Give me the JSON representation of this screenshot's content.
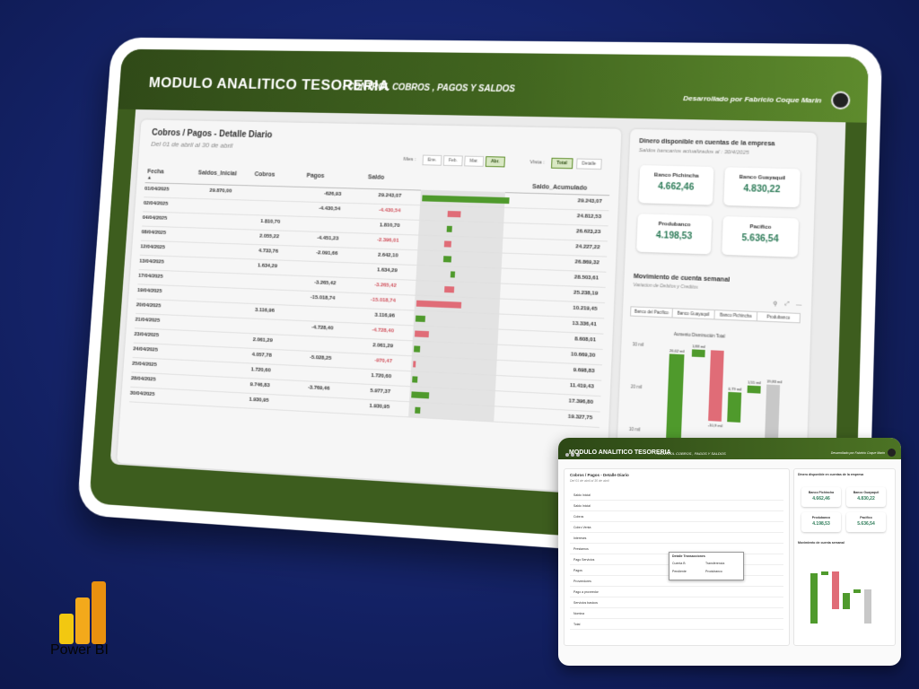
{
  "header": {
    "title": "MODULO ANALITICO TESORERIA",
    "subtitle": "- CONTROL COBROS , PAGOS Y SALDOS",
    "developer": "Desarrollado por Fabricio Coque Marin"
  },
  "detail": {
    "title": "Cobros / Pagos - Detalle Diario",
    "subtitle": "Del 01 de abril al 30 de abril",
    "mes_label": "Mes :",
    "months": [
      "Ene.",
      "Feb.",
      "Mar.",
      "Abr."
    ],
    "selected_month": "Abr.",
    "vista_label": "Vista :",
    "views": [
      "Total",
      "Detalle"
    ],
    "selected_view": "Total",
    "columns": [
      "Fecha",
      "Saldos_Inicial",
      "Cobros",
      "Pagos",
      "Saldo",
      "Saldo_Acumulado"
    ],
    "rows": [
      {
        "fecha": "01/04/2025",
        "inicial": "29.870,00",
        "cobros": "",
        "pagos": "-626,93",
        "saldo": "29.243,07",
        "acum": "29.243,07"
      },
      {
        "fecha": "02/04/2025",
        "inicial": "",
        "cobros": "",
        "pagos": "-4.430,54",
        "saldo": "-4.430,54",
        "acum": "24.812,53"
      },
      {
        "fecha": "04/04/2025",
        "inicial": "",
        "cobros": "1.810,70",
        "pagos": "",
        "saldo": "1.810,70",
        "acum": "26.623,23"
      },
      {
        "fecha": "08/04/2025",
        "inicial": "",
        "cobros": "2.055,22",
        "pagos": "-4.451,23",
        "saldo": "-2.396,01",
        "acum": "24.227,22"
      },
      {
        "fecha": "12/04/2025",
        "inicial": "",
        "cobros": "4.733,76",
        "pagos": "-2.091,66",
        "saldo": "2.642,10",
        "acum": "26.869,32"
      },
      {
        "fecha": "13/04/2025",
        "inicial": "",
        "cobros": "1.634,29",
        "pagos": "",
        "saldo": "1.634,29",
        "acum": "28.503,61"
      },
      {
        "fecha": "17/04/2025",
        "inicial": "",
        "cobros": "",
        "pagos": "-3.265,42",
        "saldo": "-3.265,42",
        "acum": "25.238,19"
      },
      {
        "fecha": "19/04/2025",
        "inicial": "",
        "cobros": "",
        "pagos": "-15.018,74",
        "saldo": "-15.018,74",
        "acum": "10.219,45"
      },
      {
        "fecha": "20/04/2025",
        "inicial": "",
        "cobros": "3.116,96",
        "pagos": "",
        "saldo": "3.116,96",
        "acum": "13.336,41"
      },
      {
        "fecha": "21/04/2025",
        "inicial": "",
        "cobros": "",
        "pagos": "-4.728,40",
        "saldo": "-4.728,40",
        "acum": "8.608,01"
      },
      {
        "fecha": "23/04/2025",
        "inicial": "",
        "cobros": "2.061,29",
        "pagos": "",
        "saldo": "2.061,29",
        "acum": "10.669,30"
      },
      {
        "fecha": "24/04/2025",
        "inicial": "",
        "cobros": "4.057,78",
        "pagos": "-5.028,25",
        "saldo": "-970,47",
        "acum": "9.698,83"
      },
      {
        "fecha": "25/04/2025",
        "inicial": "",
        "cobros": "1.720,60",
        "pagos": "",
        "saldo": "1.720,60",
        "acum": "11.419,43"
      },
      {
        "fecha": "28/04/2025",
        "inicial": "",
        "cobros": "9.746,83",
        "pagos": "-3.769,46",
        "saldo": "5.977,37",
        "acum": "17.396,80"
      },
      {
        "fecha": "30/04/2025",
        "inicial": "",
        "cobros": "1.930,95",
        "pagos": "",
        "saldo": "1.930,95",
        "acum": "19.327,75"
      }
    ]
  },
  "chart_data": {
    "type": "bar",
    "categories": [
      "01/04/2025",
      "02/04/2025",
      "04/04/2025",
      "08/04/2025",
      "12/04/2025",
      "13/04/2025",
      "17/04/2025",
      "19/04/2025",
      "20/04/2025",
      "21/04/2025",
      "23/04/2025",
      "24/04/2025",
      "25/04/2025",
      "28/04/2025",
      "30/04/2025"
    ],
    "series": [
      {
        "values": [
          29243.07,
          -4430.54,
          1810.7,
          -2396.01,
          2642.1,
          1634.29,
          -3265.42,
          -15018.74,
          3116.96,
          -4728.4,
          2061.29,
          -970.47,
          1720.6,
          5977.37,
          1930.95
        ]
      }
    ],
    "colors": {
      "positive": "#4f9a2c",
      "negative": "#e06c77"
    }
  },
  "accounts": {
    "title": "Dinero disponible en cuentas de la empresa",
    "subtitle": "Saldos bancarios actualizados al : 30/4/2025",
    "cards": [
      {
        "name": "Banco Pichincha",
        "value": "4.662,46"
      },
      {
        "name": "Banco Guayaquil",
        "value": "4.830,22"
      },
      {
        "name": "Produbanco",
        "value": "4.198,53"
      },
      {
        "name": "Pacifico",
        "value": "5.636,54"
      }
    ]
  },
  "movement": {
    "title": "Movimiento de cuenta semanal",
    "subtitle": "Variacion de Debitos y Creditos",
    "bank_tabs": [
      "Banco del Pacifico",
      "Banco Guayaquil",
      "Banco Pichincha",
      "Produbanco"
    ],
    "legend": "Aumento  Disminución  Total",
    "y_ticks": [
      "30 mil",
      "20 mil",
      "10 mil"
    ],
    "labels": [
      "26,62 mil",
      "1,88 mil",
      "-10,9 mil",
      "0,79 mil",
      "1,55 mil",
      "19,83 mil"
    ]
  },
  "mini": {
    "title": "MODULO ANALITICO TESORERIA",
    "subtitle": "- CONTROL COBROS , PAGOS Y SALDOS",
    "developer": "Desarrollado por Fabricio Coque Marin",
    "panel_title": "Cobros / Pagos - Detalle Diario",
    "panel_sub": "Del 01 de abril al 30 de abril",
    "rows": [
      "Saldo Inicial",
      "Saldo Inicial",
      "Cobros",
      "Cobro Venta",
      "Intereses",
      "Prestamos",
      "Pago Servicios",
      "Pagos",
      "Proveedores",
      "Pago a proveedor",
      "Servicios basicos",
      "Nomina",
      "Total"
    ],
    "tooltip": {
      "line1": "Detalle Transacciones",
      "k1": "Cuenta B",
      "v1": "Transferencia",
      "k2": "Pendiente",
      "v2": "Produbanco"
    },
    "accounts_title": "Dinero disponible en cuentas de la empresa",
    "cards": [
      {
        "name": "Banco Pichincha",
        "value": "4.662,46"
      },
      {
        "name": "Banco Guayaquil",
        "value": "4.830,22"
      },
      {
        "name": "Produbanco",
        "value": "4.198,53"
      },
      {
        "name": "Pacifico",
        "value": "5.636,54"
      }
    ],
    "movement_title": "Movimiento de cuenta semanal"
  },
  "logo": {
    "label": "Power BI"
  }
}
